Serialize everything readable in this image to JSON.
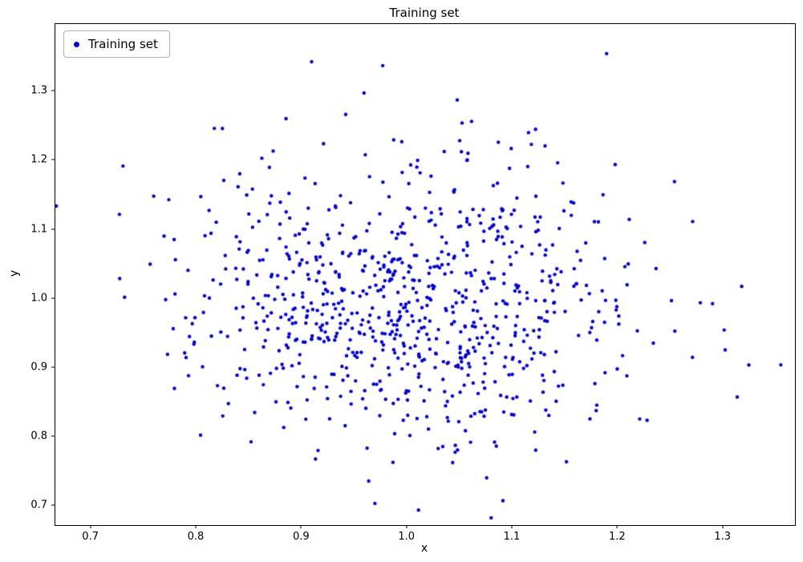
{
  "figure": {
    "background": "#ffffff"
  },
  "chart_data": {
    "type": "scatter",
    "title": "Training set",
    "xlabel": "x",
    "ylabel": "y",
    "xlim": [
      0.666,
      1.368
    ],
    "ylim": [
      0.672,
      1.398
    ],
    "xticks": [
      "0.7",
      "0.8",
      "0.9",
      "1.0",
      "1.1",
      "1.2",
      "1.3"
    ],
    "yticks": [
      "0.7",
      "0.8",
      "0.9",
      "1.0",
      "1.1",
      "1.2",
      "1.3"
    ],
    "grid": false,
    "legend": {
      "position": "upper-left",
      "labels": [
        "Training set"
      ]
    },
    "series": [
      {
        "name": "Training set",
        "color": "#0000cd",
        "marker": "point",
        "marker_radius": 2.2,
        "n_points": 850,
        "distribution": {
          "kind": "gaussian",
          "mean": [
            1.0,
            1.0
          ],
          "std": [
            0.105,
            0.105
          ],
          "seed": 7
        },
        "extent": {
          "x_min": 0.698,
          "x_max": 1.335,
          "y_min": 0.706,
          "y_max": 1.365
        }
      }
    ]
  }
}
